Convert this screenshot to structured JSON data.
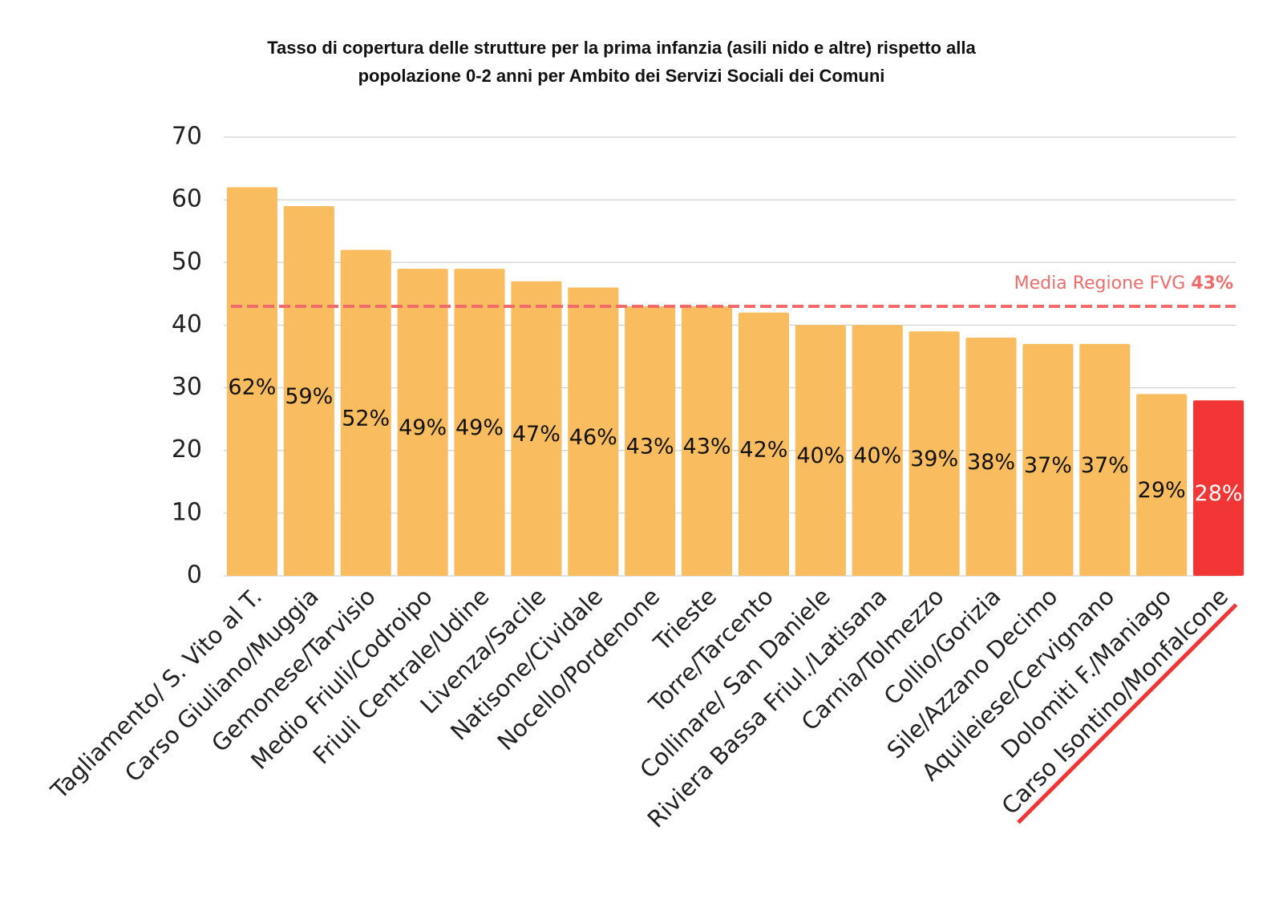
{
  "chart_data": {
    "type": "bar",
    "title": [
      "Tasso di copertura delle strutture per la prima infanzia (asili nido e altre) rispetto alla",
      "popolazione 0-2 anni per Ambito dei Servizi Sociali dei Comuni"
    ],
    "categories": [
      "Tagliamento/ S. Vito al T.",
      "Carso Giuliano/Muggia",
      "Gemonese/Tarvisio",
      "Medio Friuli/Codroipo",
      "Friuli Centrale/Udine",
      "Livenza/Sacile",
      "Natisone/Cividale",
      "Nocello/Pordenone",
      "Trieste",
      "Torre/Tarcento",
      "Collinare/ San Daniele",
      "Riviera Bassa Friul./Latisana",
      "Carnia/Tolmezzo",
      "Collio/Gorizia",
      "Sile/Azzano Decimo",
      "Aquileiese/Cervignano",
      "Dolomiti F./Maniago",
      "Carso Isontino/Monfalcone"
    ],
    "values": [
      62,
      59,
      52,
      49,
      49,
      47,
      46,
      43,
      43,
      42,
      40,
      40,
      39,
      38,
      37,
      37,
      29,
      28
    ],
    "value_labels": [
      "62%",
      "59%",
      "52%",
      "49%",
      "49%",
      "47%",
      "46%",
      "43%",
      "43%",
      "42%",
      "40%",
      "40%",
      "39%",
      "38%",
      "37%",
      "37%",
      "29%",
      "28%"
    ],
    "colors": [
      "#f9bc5f",
      "#f9bc5f",
      "#f9bc5f",
      "#f9bc5f",
      "#f9bc5f",
      "#f9bc5f",
      "#f9bc5f",
      "#f9bc5f",
      "#f9bc5f",
      "#f9bc5f",
      "#f9bc5f",
      "#f9bc5f",
      "#f9bc5f",
      "#f9bc5f",
      "#f9bc5f",
      "#f9bc5f",
      "#f9bc5f",
      "#f23636"
    ],
    "average": {
      "label": "Media Regione FVG",
      "value": 43,
      "value_label": "43%",
      "color": "#f26b6b"
    },
    "ylim": [
      0,
      70
    ],
    "yticks": [
      0,
      10,
      20,
      30,
      40,
      50,
      60,
      70
    ],
    "grid": true
  }
}
